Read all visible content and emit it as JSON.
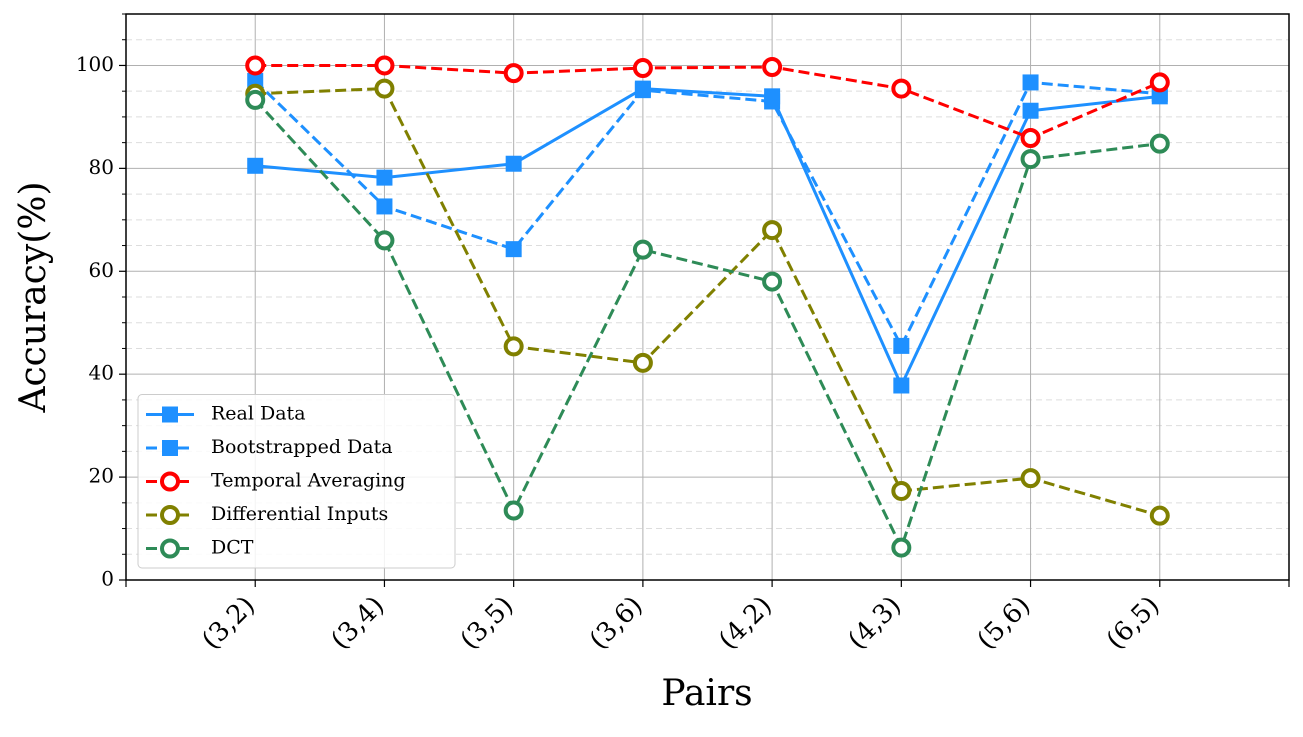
{
  "chart_data": {
    "type": "line",
    "xlabel": "Pairs",
    "ylabel": "Accuracy(%)",
    "categories": [
      "(3,2)",
      "(3,4)",
      "(3,5)",
      "(3,6)",
      "(4,2)",
      "(4,3)",
      "(5,6)",
      "(6,5)"
    ],
    "series": [
      {
        "name": "Real Data",
        "color": "#1e90ff",
        "linestyle": "solid",
        "marker": "square",
        "values": [
          80.5,
          78.2,
          80.9,
          95.5,
          94,
          37.8,
          91.2,
          94
        ]
      },
      {
        "name": "Bootstrapped Data",
        "color": "#1e90ff",
        "linestyle": "dashed",
        "marker": "square",
        "values": [
          97,
          72.6,
          64.3,
          95.2,
          93,
          45.5,
          96.7,
          94.5
        ]
      },
      {
        "name": "Temporal Averaging",
        "color": "#ff0000",
        "linestyle": "dashed",
        "marker": "circle",
        "values": [
          100,
          100,
          98.5,
          99.5,
          99.7,
          95.5,
          85.9,
          96.7
        ]
      },
      {
        "name": "Differential Inputs",
        "color": "#808000",
        "linestyle": "dashed",
        "marker": "circle",
        "values": [
          94.5,
          95.5,
          45.4,
          42.2,
          68,
          17.3,
          19.8,
          12.5
        ]
      },
      {
        "name": "DCT",
        "color": "#2e8b57",
        "linestyle": "dashed",
        "marker": "circle",
        "values": [
          93.3,
          66,
          13.5,
          64.2,
          58,
          6.3,
          81.8,
          84.8
        ]
      }
    ],
    "ylim": [
      0,
      110
    ],
    "yticks": [
      0,
      20,
      40,
      60,
      80,
      100
    ],
    "grid": true,
    "legend": "lower left"
  }
}
